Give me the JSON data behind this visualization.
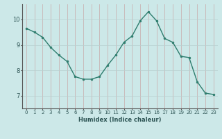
{
  "x": [
    0,
    1,
    2,
    3,
    4,
    5,
    6,
    7,
    8,
    9,
    10,
    11,
    12,
    13,
    14,
    15,
    16,
    17,
    18,
    19,
    20,
    21,
    22,
    23
  ],
  "y": [
    9.65,
    9.5,
    9.3,
    8.9,
    8.6,
    8.35,
    7.75,
    7.65,
    7.65,
    7.75,
    8.2,
    8.6,
    9.1,
    9.35,
    9.95,
    10.3,
    9.95,
    9.25,
    9.1,
    8.55,
    8.5,
    7.55,
    7.1,
    7.05
  ],
  "xlabel": "Humidex (Indice chaleur)",
  "ylim": [
    6.5,
    10.6
  ],
  "xlim": [
    -0.5,
    23.5
  ],
  "yticks": [
    7,
    8,
    9,
    10
  ],
  "xticks": [
    0,
    1,
    2,
    3,
    4,
    5,
    6,
    7,
    8,
    9,
    10,
    11,
    12,
    13,
    14,
    15,
    16,
    17,
    18,
    19,
    20,
    21,
    22,
    23
  ],
  "line_color": "#2e7d6e",
  "marker_color": "#2e7d6e",
  "bg_color": "#cce8e8",
  "grid_color_h": "#c8a0a0",
  "grid_color_v": "#c8a0a0",
  "axis_color": "#555555",
  "tick_label_color": "#2e5555",
  "xlabel_color": "#2e5555",
  "tick_fontsize": 5.0,
  "xlabel_fontsize": 6.0
}
